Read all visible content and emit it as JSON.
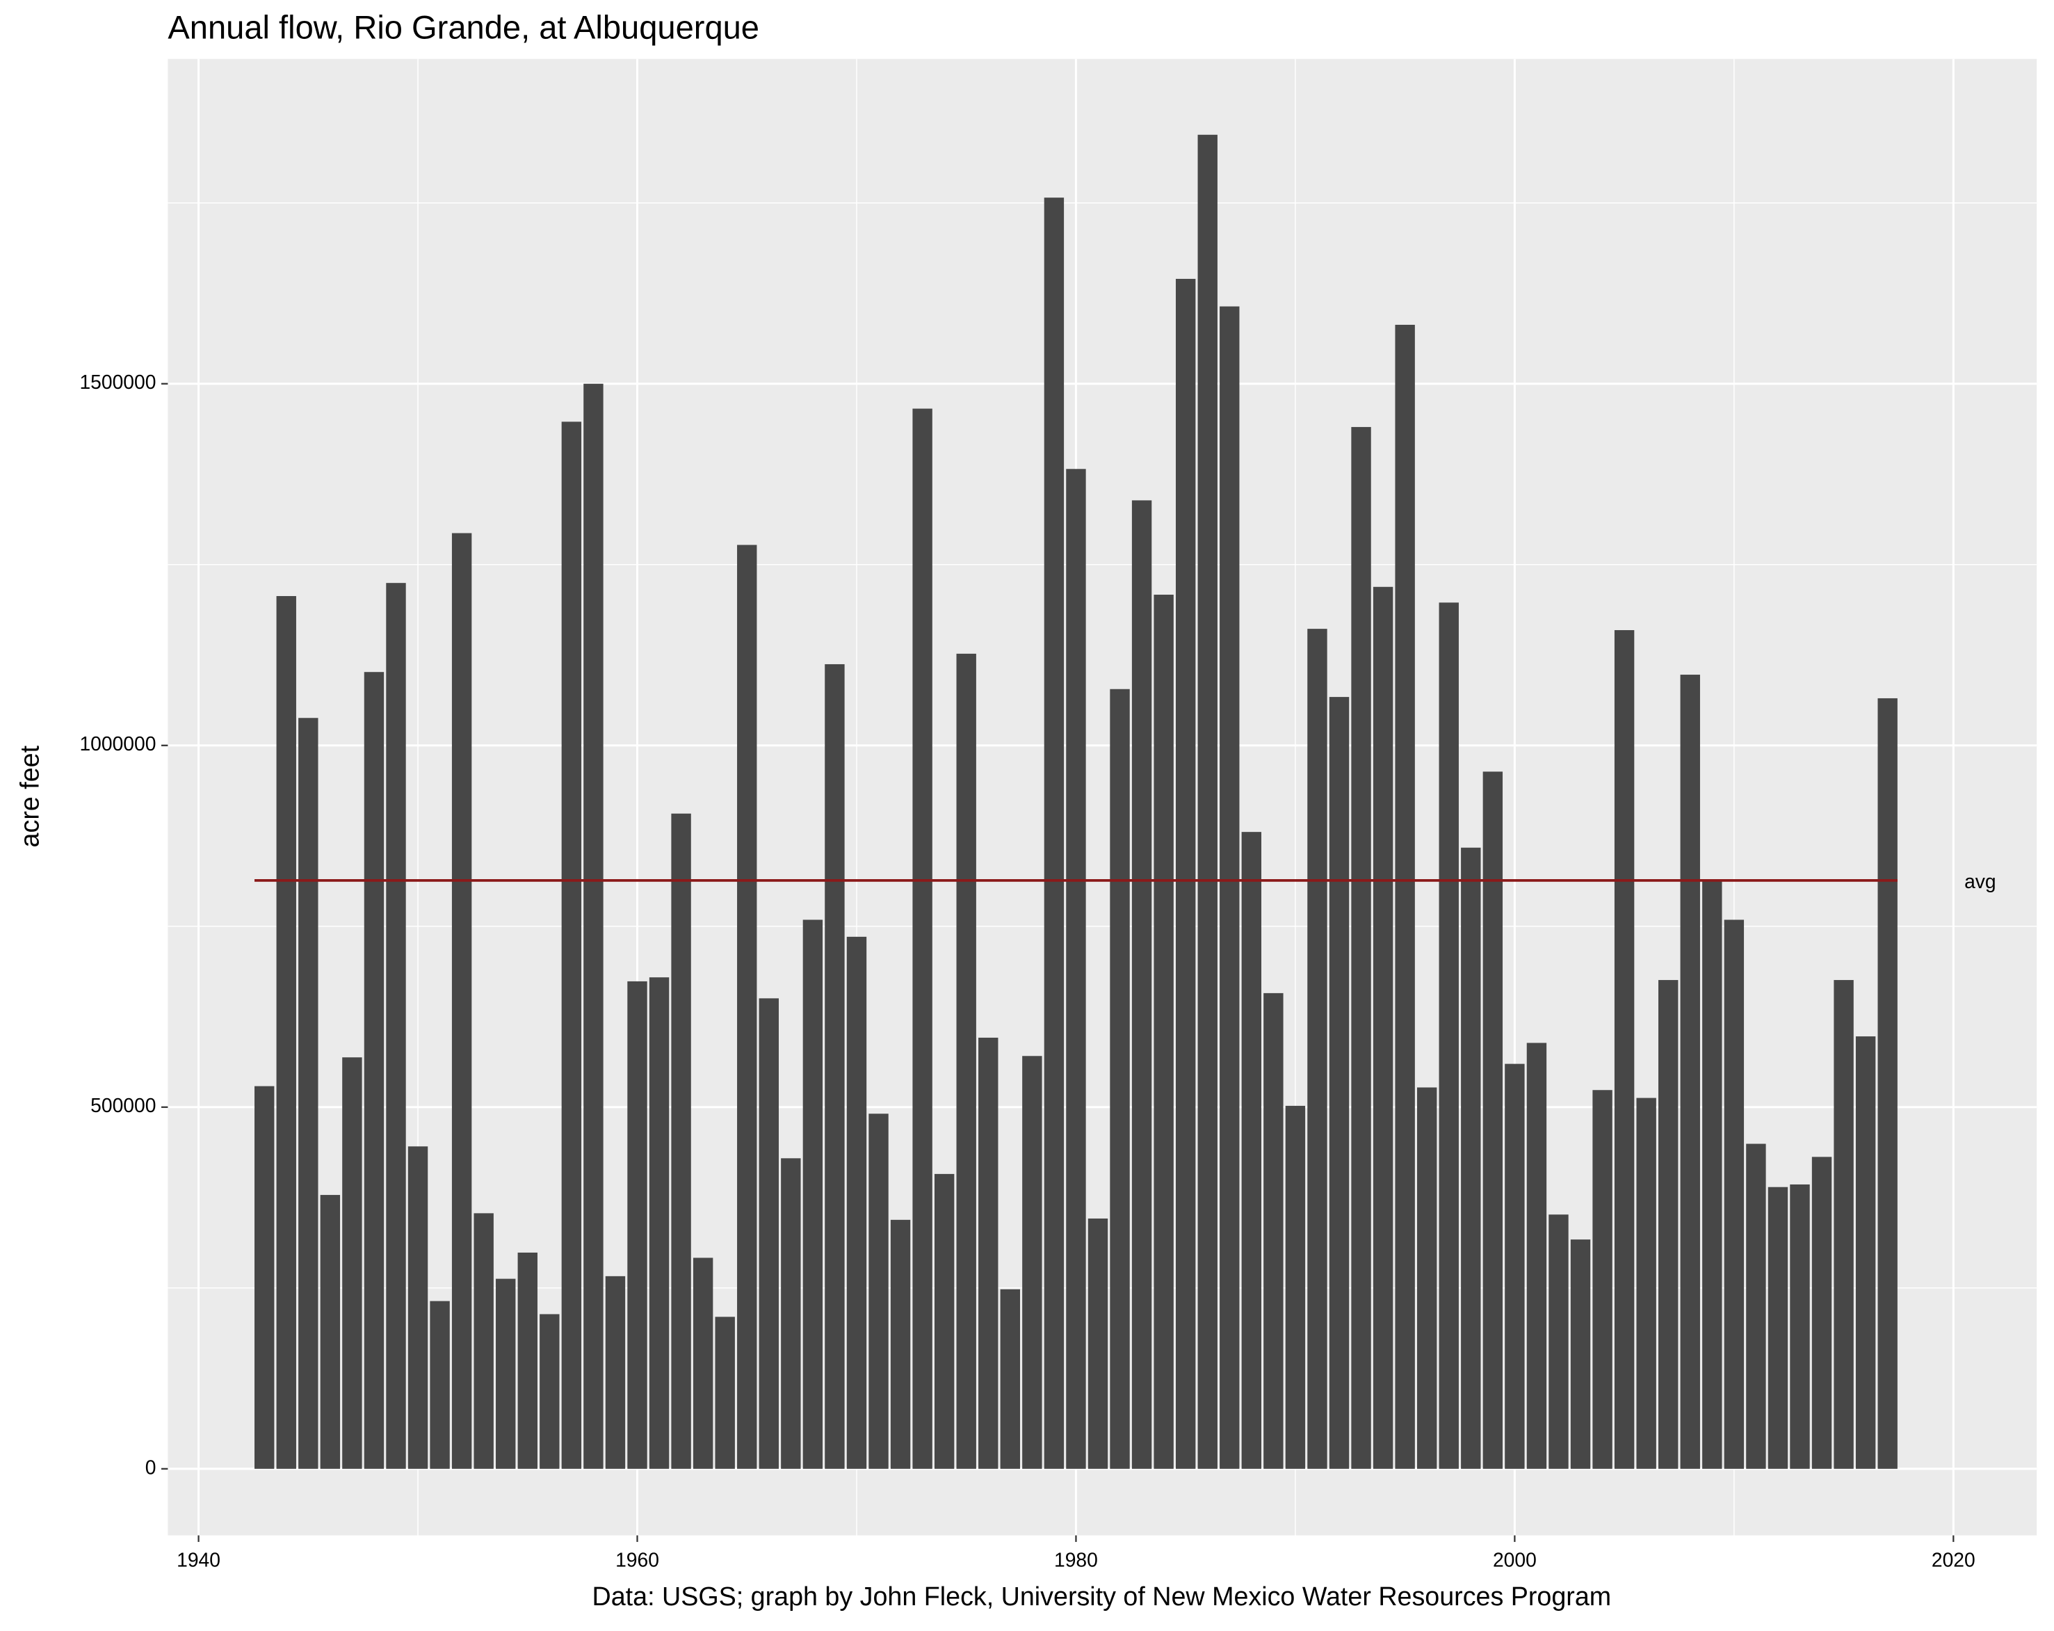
{
  "chart_data": {
    "type": "bar",
    "title": "Annual flow, Rio Grande, at Albuquerque",
    "x_label": "Data: USGS; graph by John Fleck, University of New Mexico Water Resources Program",
    "y_label": "acre feet",
    "x": [
      1943,
      1944,
      1945,
      1946,
      1947,
      1948,
      1949,
      1950,
      1951,
      1952,
      1953,
      1954,
      1955,
      1956,
      1957,
      1958,
      1959,
      1960,
      1961,
      1962,
      1963,
      1964,
      1965,
      1966,
      1967,
      1968,
      1969,
      1970,
      1971,
      1972,
      1973,
      1974,
      1975,
      1976,
      1977,
      1978,
      1979,
      1980,
      1981,
      1982,
      1983,
      1984,
      1985,
      1986,
      1987,
      1988,
      1989,
      1990,
      1991,
      1992,
      1993,
      1994,
      1995,
      1996,
      1997,
      1998,
      1999,
      2000,
      2001,
      2002,
      2003,
      2004,
      2005,
      2006,
      2007,
      2008,
      2009,
      2010,
      2011,
      2012,
      2013,
      2014,
      2015,
      2016,
      2017
    ],
    "values": [
      529000,
      1206500,
      1038000,
      378600,
      568800,
      1101500,
      1224600,
      445700,
      231900,
      1293500,
      353300,
      262700,
      298900,
      213800,
      1447500,
      1500000,
      266300,
      673900,
      679400,
      905800,
      291700,
      210100,
      1277200,
      650400,
      429300,
      759000,
      1112300,
      735500,
      490900,
      344200,
      1465600,
      407600,
      1126800,
      596000,
      248200,
      570700,
      1757300,
      1382200,
      346000,
      1077900,
      1338800,
      1208400,
      1645000,
      1844200,
      1606900,
      880400,
      657600,
      501800,
      1161200,
      1067000,
      1440200,
      1219200,
      1581500,
      527200,
      1197500,
      858700,
      963800,
      559800,
      588800,
      351500,
      317000,
      523600,
      1159400,
      512700,
      675700,
      1097800,
      813400,
      759000,
      449300,
      389500,
      393100,
      431200,
      675700,
      597800,
      1065200
    ],
    "color": "#474747",
    "average": {
      "label": "avg",
      "value": 813400,
      "color": "#8b1a1a"
    },
    "xlim": [
      1938.6,
      2023.8
    ],
    "ylim": [
      -92000,
      1949000
    ],
    "xticks": [
      1940,
      1960,
      1980,
      2000,
      2020
    ],
    "yticks": [
      0,
      500000,
      1000000,
      1500000
    ],
    "grid": true
  }
}
